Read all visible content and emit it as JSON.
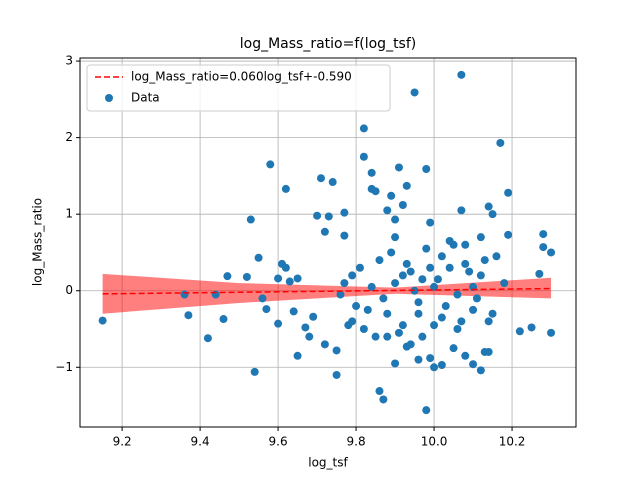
{
  "chart_data": {
    "type": "scatter",
    "title": "log_Mass_ratio=f(log_tsf)",
    "x_label": "log_tsf",
    "y_label": "log_Mass_ratio",
    "xlim": [
      9.092,
      10.364
    ],
    "ylim": [
      -1.78,
      3.04
    ],
    "xticks": [
      9.2,
      9.4,
      9.6,
      9.8,
      {
        "value": 10,
        "label": "10.0"
      },
      10.2
    ],
    "yticks": [
      {
        "value": -1,
        "label": "−1"
      },
      0,
      1,
      2,
      3
    ],
    "grid": true,
    "legend": "upper left",
    "band": {
      "color": "#ff0000",
      "x": [
        9.15,
        9.5,
        9.9,
        10.3
      ],
      "lower": [
        -0.3,
        -0.16,
        -0.04,
        -0.1
      ],
      "upper": [
        0.22,
        0.1,
        0.04,
        0.17
      ]
    },
    "series": [
      {
        "name": "log_Mass_ratio=0.060log_tsf+-0.590",
        "type": "line",
        "color": "#ff0000",
        "x": [
          9.15,
          10.3
        ],
        "values": [
          -0.041,
          0.028
        ]
      },
      {
        "name": "Data",
        "type": "scatter",
        "color": "#1f77b4",
        "x": [
          9.15,
          9.36,
          9.37,
          9.42,
          9.44,
          9.46,
          9.47,
          9.52,
          9.53,
          9.54,
          9.55,
          9.56,
          9.57,
          9.58,
          9.6,
          9.6,
          9.61,
          9.62,
          9.62,
          9.63,
          9.64,
          9.65,
          9.65,
          9.67,
          9.68,
          9.69,
          9.7,
          9.71,
          9.72,
          9.73,
          9.74,
          9.72,
          9.75,
          9.75,
          9.77,
          9.77,
          9.78,
          9.79,
          9.8,
          9.82,
          9.82,
          9.84,
          9.84,
          9.85,
          9.86,
          9.87,
          9.88,
          9.89,
          9.9,
          9.91,
          9.92,
          9.93,
          9.95,
          9.98,
          9.98,
          9.99,
          10.07,
          10.07,
          10.14,
          10.15,
          10.17,
          10.19,
          10.19,
          10.28,
          10.28,
          10.3,
          10.3,
          10.27,
          10.25,
          10.22,
          10.12,
          10.13,
          10.14,
          10.1,
          10.08,
          10.05,
          10.02,
          10.0,
          9.99,
          9.96,
          9.93,
          9.9,
          9.88,
          9.85,
          9.82,
          9.86,
          9.88,
          9.9,
          9.92,
          9.94,
          9.96,
          9.98,
          10.0,
          10.02,
          10.04,
          10.06,
          10.08,
          10.1,
          10.12,
          10.14,
          10.16,
          10.18,
          9.87,
          9.89,
          9.91,
          9.93,
          9.95,
          9.97,
          9.99,
          10.01,
          10.03,
          10.05,
          10.07,
          10.09,
          10.11,
          10.13,
          10.15,
          9.84,
          9.83,
          9.81,
          9.79,
          9.77,
          9.76,
          9.9,
          9.94,
          9.97,
          10.02,
          10.06,
          10.1,
          10.04,
          9.92,
          9.96,
          10.0,
          10.08,
          10.12
        ],
        "values": [
          -0.39,
          -0.05,
          -0.32,
          -0.62,
          -0.05,
          -0.37,
          0.19,
          0.18,
          0.93,
          -1.06,
          0.43,
          -0.1,
          -0.24,
          1.65,
          0.16,
          -0.43,
          0.35,
          1.33,
          0.3,
          0.12,
          -0.27,
          -0.85,
          0.16,
          -0.48,
          -0.6,
          -0.34,
          0.98,
          1.47,
          0.77,
          0.97,
          1.42,
          -0.7,
          -0.78,
          -1.1,
          1.02,
          0.72,
          -0.45,
          0.2,
          -0.2,
          2.12,
          1.75,
          1.54,
          1.33,
          1.3,
          -1.31,
          -1.42,
          1.05,
          1.24,
          0.93,
          1.61,
          1.12,
          1.37,
          2.59,
          1.59,
          -1.56,
          0.89,
          2.82,
          1.05,
          1.1,
          1.0,
          1.93,
          1.28,
          0.73,
          0.74,
          0.57,
          0.5,
          -0.55,
          0.22,
          -0.48,
          -0.53,
          -1.04,
          -0.8,
          -0.8,
          -0.96,
          -0.85,
          -0.75,
          -0.97,
          -1.0,
          -0.88,
          -0.9,
          -0.73,
          -0.95,
          -0.6,
          -0.6,
          -0.5,
          0.4,
          -0.3,
          0.1,
          -0.45,
          0.25,
          -0.15,
          0.55,
          0.05,
          -0.35,
          0.3,
          -0.05,
          0.6,
          -0.25,
          0.2,
          -0.4,
          0.45,
          0.1,
          -0.1,
          0.5,
          -0.55,
          0.35,
          0.0,
          -0.6,
          0.3,
          0.15,
          -0.2,
          0.6,
          -0.4,
          0.25,
          -0.1,
          0.4,
          -0.3,
          0.05,
          -0.25,
          0.3,
          -0.4,
          0.1,
          -0.05,
          0.7,
          -0.7,
          0.15,
          0.45,
          -0.5,
          0.05,
          0.65,
          0.2,
          -0.3,
          -0.45,
          0.35,
          0.7
        ]
      }
    ]
  }
}
